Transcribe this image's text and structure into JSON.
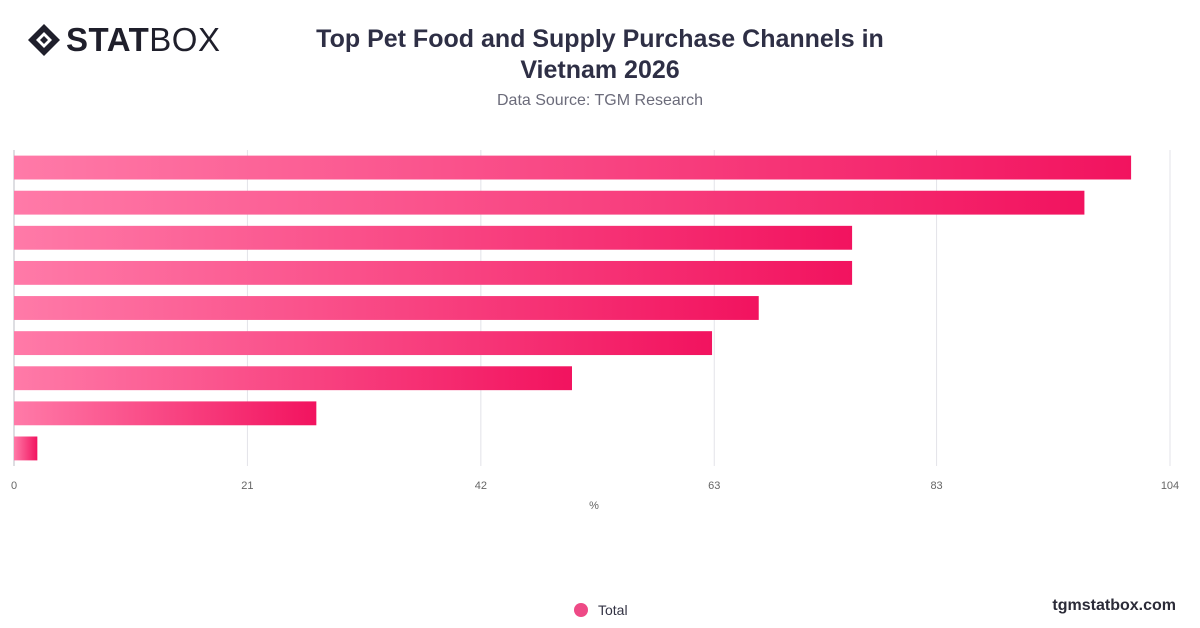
{
  "logo": {
    "bold": "STAT",
    "light": "BOX"
  },
  "header": {
    "title_line1": "Top Pet Food and Supply Purchase Channels in",
    "title_line2": "Vietnam 2026",
    "subtitle": "Data Source: TGM Research"
  },
  "chart_data": {
    "type": "bar",
    "orientation": "horizontal",
    "categories": [
      "",
      "",
      "",
      "",
      "",
      "",
      "",
      "",
      ""
    ],
    "series": [
      {
        "name": "Total",
        "values": [
          100.5,
          96.3,
          75.4,
          75.4,
          67.0,
          62.8,
          50.2,
          27.2,
          2.1
        ]
      }
    ],
    "xlim": [
      0,
      104
    ],
    "xticks": [
      "0",
      "21",
      "42",
      "63",
      "83",
      "104"
    ],
    "xlabel": "%",
    "grid": true,
    "legend": "bottom-center",
    "colors": {
      "bar_start": "#ff7aa8",
      "bar_end": "#f2135f",
      "grid": "#e3e3e8",
      "axis": "#666666"
    }
  },
  "footer": {
    "watermark": "tgmstatbox.com"
  }
}
